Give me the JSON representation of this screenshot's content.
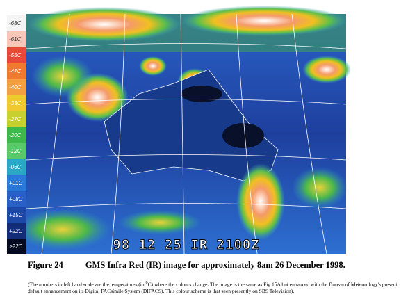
{
  "image": {
    "scale_labels": [
      "-68C",
      "-61C",
      "-55C",
      "-47C",
      "-40C",
      "-33C",
      "-27C",
      "-20C",
      "-12C",
      "-06C",
      "+01C",
      "+08C",
      "+15C",
      "+22C",
      ">22C"
    ],
    "timestamp": "98 12 25 IR 2100Z"
  },
  "caption": {
    "figure": "Figure 24",
    "title": "GMS Infra Red (IR) image for approximately 8am 26 December 1998."
  },
  "note": {
    "part1": "(The numbers in left hand scale are the temperatures (in ",
    "superscript": "0",
    "part2": "C) where the colours change.  The image is the same as Fig 15A but enhanced with the Bureau of Meteorology's present default enhancement on its Digital FACsimile System (DIFACS). This colour scheme is that seen presently on SBS Television)."
  }
}
